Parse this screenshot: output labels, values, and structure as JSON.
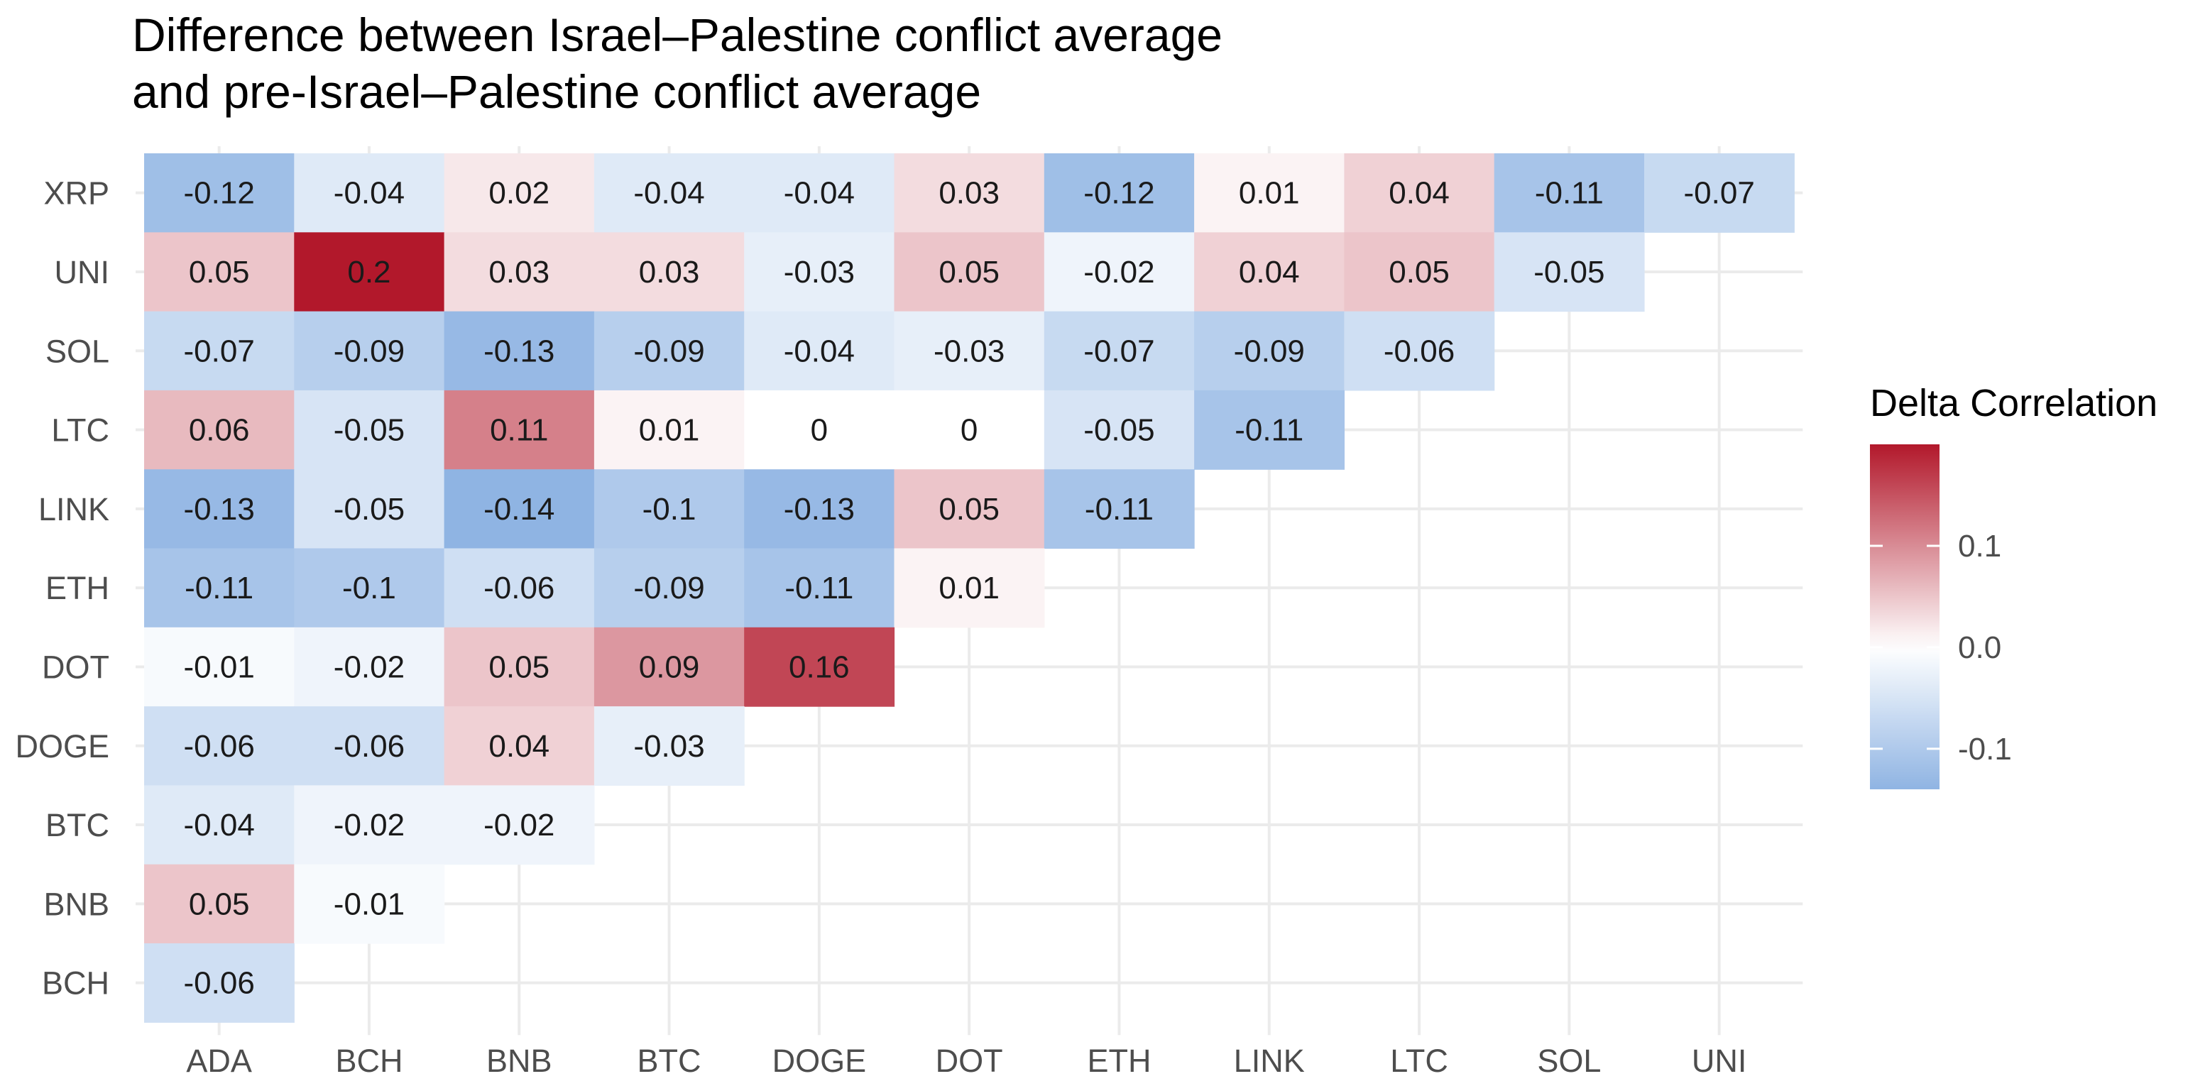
{
  "chart_data": {
    "type": "heatmap",
    "title_lines": [
      "Difference between Israel–Palestine conflict average",
      "and pre-Israel–Palestine conflict average"
    ],
    "x_categories": [
      "ADA",
      "BCH",
      "BNB",
      "BTC",
      "DOGE",
      "DOT",
      "ETH",
      "LINK",
      "LTC",
      "SOL",
      "UNI"
    ],
    "y_categories": [
      "XRP",
      "UNI",
      "SOL",
      "LTC",
      "LINK",
      "ETH",
      "DOT",
      "DOGE",
      "BTC",
      "BNB",
      "BCH"
    ],
    "rows": [
      {
        "y": "XRP",
        "values": [
          -0.12,
          -0.04,
          0.02,
          -0.04,
          -0.04,
          0.03,
          -0.12,
          0.01,
          0.04,
          -0.11,
          -0.07
        ]
      },
      {
        "y": "UNI",
        "values": [
          0.05,
          0.2,
          0.03,
          0.03,
          -0.03,
          0.05,
          -0.02,
          0.04,
          0.05,
          -0.05
        ]
      },
      {
        "y": "SOL",
        "values": [
          -0.07,
          -0.09,
          -0.13,
          -0.09,
          -0.04,
          -0.03,
          -0.07,
          -0.09,
          -0.06
        ]
      },
      {
        "y": "LTC",
        "values": [
          0.06,
          -0.05,
          0.11,
          0.01,
          0,
          0,
          -0.05,
          -0.11
        ]
      },
      {
        "y": "LINK",
        "values": [
          -0.13,
          -0.05,
          -0.14,
          -0.1,
          -0.13,
          0.05,
          -0.11
        ]
      },
      {
        "y": "ETH",
        "values": [
          -0.11,
          -0.1,
          -0.06,
          -0.09,
          -0.11,
          0.01
        ]
      },
      {
        "y": "DOT",
        "values": [
          -0.01,
          -0.02,
          0.05,
          0.09,
          0.16
        ]
      },
      {
        "y": "DOGE",
        "values": [
          -0.06,
          -0.06,
          0.04,
          -0.03
        ]
      },
      {
        "y": "BTC",
        "values": [
          -0.04,
          -0.02,
          -0.02
        ]
      },
      {
        "y": "BNB",
        "values": [
          0.05,
          -0.01
        ]
      },
      {
        "y": "BCH",
        "values": [
          -0.06
        ]
      }
    ],
    "legend": {
      "title": "Delta Correlation",
      "breaks": [
        0.1,
        0.0,
        -0.1
      ],
      "break_labels": [
        "0.1",
        "0.0",
        "-0.1"
      ],
      "range": [
        -0.14,
        0.2
      ],
      "low_color": "#8fb4e3",
      "mid_color": "#ffffff",
      "high_color": "#b2182b"
    },
    "grid": true
  }
}
